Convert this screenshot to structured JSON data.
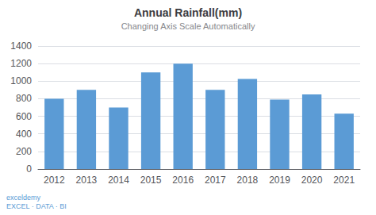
{
  "chart_data": {
    "type": "bar",
    "title": "Annual Rainfall(mm)",
    "subtitle": "Changing Axis Scale Automatically",
    "categories": [
      2012,
      2013,
      2014,
      2015,
      2016,
      2017,
      2018,
      2019,
      2020,
      2021
    ],
    "values": [
      800,
      900,
      700,
      1100,
      1200,
      900,
      1025,
      790,
      850,
      630
    ],
    "color": "#5B9BD5",
    "ylim": [
      0,
      1400
    ],
    "yticks": [
      0,
      200,
      400,
      600,
      800,
      1000,
      1200,
      1400
    ],
    "grid": true,
    "annotations": [
      "exceldemy\nEXCEL · DATA · BI"
    ]
  }
}
